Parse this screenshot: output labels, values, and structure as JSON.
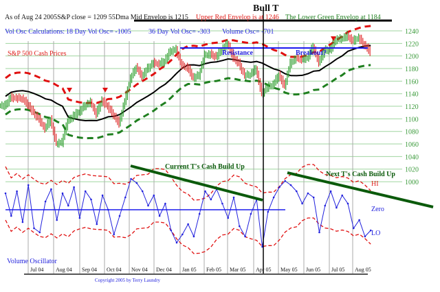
{
  "header": {
    "title": "Bull T",
    "line1": "As of Aug 24  2005S&P close = 1209  55Dma Mid Envelop is  1215",
    "upper_env": "Upper Red Envelop is at  1246",
    "lower_env": "The Lower Green Envelop at  1184",
    "vol_calc_label": "Vol Osc Calculations:",
    "vol18": "18 Day Vol Osc= -1005",
    "vol36": "36 Day Vol Osc= -303",
    "vol_osc": "Volume Osc= -701"
  },
  "labels": {
    "price_series": "S&P 500 Cash Prices",
    "resistance": "Resistance",
    "breakout": "Breakout?",
    "current_t": "Current T's Cash Build Up",
    "next_t": "Next T's Cash Build Up",
    "hi": "HI",
    "lo": "LO",
    "zero": "Zero",
    "vol_osc": "Volume Oscillator",
    "copyright": "Copyright 2005 by Terry Laundry"
  },
  "colors": {
    "up": "#2e9e2e",
    "down": "#e03030",
    "ma": "#000000",
    "upper": "#e01010",
    "lower": "#1f7f1f",
    "osc": "#2020dd",
    "trend": "#0b5a0b"
  },
  "chart_data": {
    "type": "line",
    "title": "Bull T",
    "ylabel": "S&P 500 Cash Prices",
    "price_ylim": [
      1000,
      1240
    ],
    "y_ticks": [
      1240,
      1220,
      1200,
      1180,
      1160,
      1140,
      1120,
      1100,
      1080,
      1060,
      1040,
      1020,
      1000
    ],
    "x_months": [
      "Jul 04",
      "Aug 04",
      "Sep 04",
      "Oct 04",
      "Nov 04",
      "Dec 04",
      "Jan 05",
      "Feb 05",
      "Mar 05",
      "Apr 05",
      "May 05",
      "Jun 05",
      "Jul 05",
      "Aug 05"
    ],
    "envelope_pct": 2.55,
    "ma_period_weeks": 11,
    "resistance_level": 1214,
    "weekly_close": [
      1123,
      1136,
      1135,
      1134,
      1125,
      1112,
      1101,
      1086,
      1101,
      1063,
      1064,
      1098,
      1107,
      1113,
      1123,
      1128,
      1110,
      1131,
      1122,
      1108,
      1095,
      1130,
      1166,
      1184,
      1170,
      1182,
      1191,
      1189,
      1194,
      1210,
      1212,
      1186,
      1184,
      1167,
      1171,
      1203,
      1205,
      1201,
      1211,
      1222,
      1200,
      1190,
      1171,
      1172,
      1182,
      1142,
      1152,
      1156,
      1172,
      1154,
      1190,
      1198,
      1197,
      1199,
      1217,
      1191,
      1211,
      1212,
      1228,
      1229,
      1234,
      1226,
      1231,
      1219,
      1209
    ],
    "volume_osc_ylim": [
      -2000,
      2000
    ],
    "volume_osc": [
      800,
      -300,
      900,
      -600,
      1200,
      -900,
      -1100,
      400,
      1000,
      -500,
      800,
      200,
      1100,
      -400,
      900,
      500,
      -700,
      700,
      0,
      -1200,
      -300,
      600,
      1500,
      1300,
      900,
      200,
      700,
      -300,
      300,
      -1000,
      -1600,
      -1200,
      -700,
      -1300,
      -200,
      900,
      500,
      1000,
      300,
      -400,
      600,
      -800,
      -1300,
      -200,
      500,
      -1800,
      -100,
      600,
      1100,
      1400,
      1200,
      900,
      300,
      800,
      600,
      -1100,
      200,
      900,
      100,
      700,
      300,
      -900,
      -500,
      -1300,
      -1005
    ]
  }
}
